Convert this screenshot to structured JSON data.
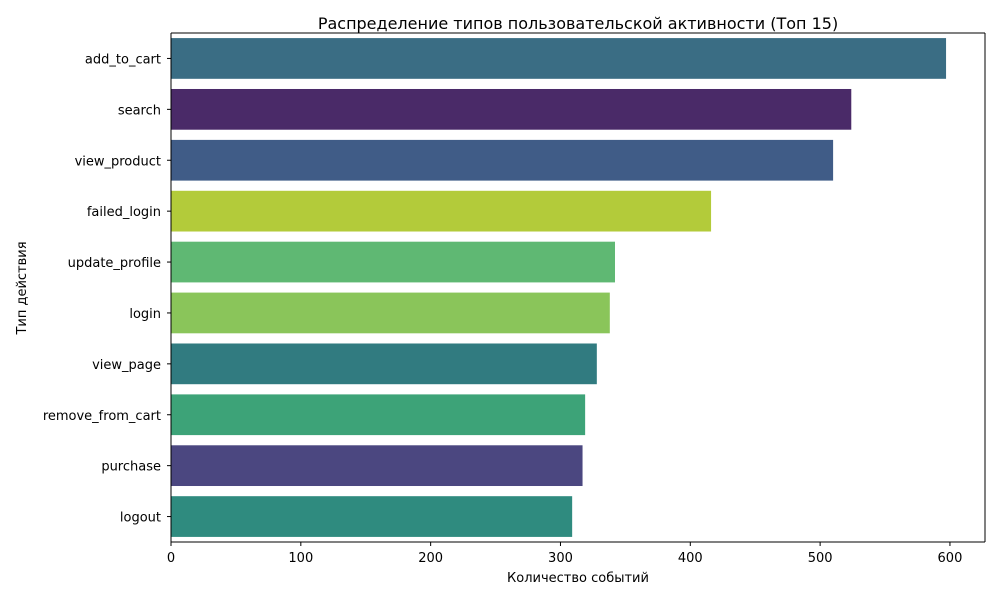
{
  "chart_data": {
    "type": "bar",
    "orientation": "horizontal",
    "title": "Распределение типов пользовательской активности (Топ 15)",
    "xlabel": "Количество событий",
    "ylabel": "Тип действия",
    "xlim": [
      0,
      627
    ],
    "x_ticks": [
      0,
      100,
      200,
      300,
      400,
      500,
      600
    ],
    "categories": [
      "add_to_cart",
      "search",
      "view_product",
      "failed_login",
      "update_profile",
      "login",
      "view_page",
      "remove_from_cart",
      "purchase",
      "logout"
    ],
    "values": [
      597,
      524,
      510,
      416,
      342,
      338,
      328,
      319,
      317,
      309
    ],
    "colors": [
      "#3a6d84",
      "#4a2a68",
      "#405c87",
      "#b3cb3a",
      "#5fb873",
      "#8ac55a",
      "#317b80",
      "#3da378",
      "#4b4780",
      "#2f8b7f"
    ],
    "grid": false,
    "legend": "none"
  }
}
